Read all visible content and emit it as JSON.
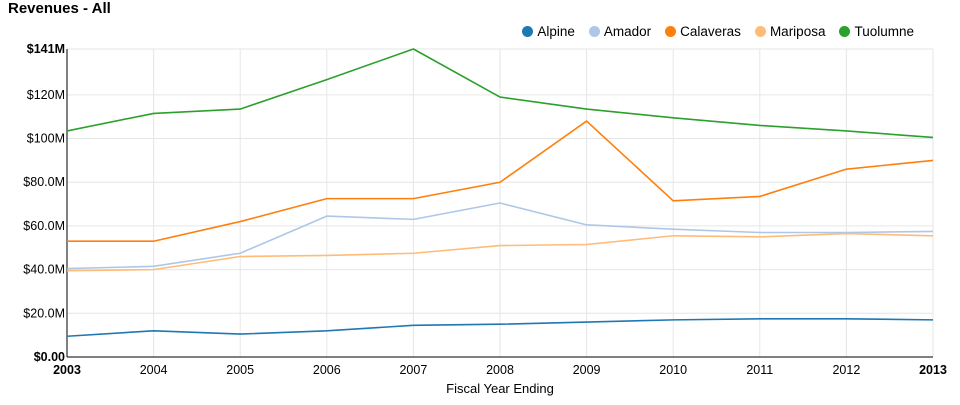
{
  "chart_data": {
    "type": "line",
    "title": "Revenues - All",
    "xlabel": "Fiscal Year Ending",
    "ylabel": "",
    "x": [
      2003,
      2004,
      2005,
      2006,
      2007,
      2008,
      2009,
      2010,
      2011,
      2012,
      2013
    ],
    "x_tick_labels": [
      "2003",
      "2004",
      "2005",
      "2006",
      "2007",
      "2008",
      "2009",
      "2010",
      "2011",
      "2012",
      "2013"
    ],
    "ylim": [
      0,
      141
    ],
    "y_ticks": [
      0,
      20,
      40,
      60,
      80,
      100,
      120,
      141
    ],
    "y_tick_labels": [
      "$0.00",
      "$20.0M",
      "$40.0M",
      "$60.0M",
      "$80.0M",
      "$100M",
      "$120M",
      "$141M"
    ],
    "grid": true,
    "legend_position": "top-right",
    "series": [
      {
        "name": "Alpine",
        "color": "#1f77b4",
        "values": [
          9.5,
          12.0,
          10.5,
          12.0,
          14.5,
          15.0,
          16.0,
          17.0,
          17.5,
          17.5,
          17.0
        ]
      },
      {
        "name": "Amador",
        "color": "#aec7e8",
        "values": [
          40.5,
          41.5,
          47.5,
          64.5,
          63.0,
          70.5,
          60.5,
          58.5,
          57.0,
          57.0,
          57.5
        ]
      },
      {
        "name": "Calaveras",
        "color": "#ff7f0e",
        "values": [
          53.0,
          53.0,
          62.0,
          72.5,
          72.5,
          80.0,
          108.0,
          71.5,
          73.5,
          86.0,
          90.0
        ]
      },
      {
        "name": "Mariposa",
        "color": "#ffbb78",
        "values": [
          39.5,
          40.0,
          46.0,
          46.5,
          47.5,
          51.0,
          51.5,
          55.5,
          55.0,
          56.5,
          55.5
        ]
      },
      {
        "name": "Tuolumne",
        "color": "#2ca02c",
        "values": [
          103.5,
          111.5,
          113.5,
          127.0,
          141.0,
          119.0,
          113.5,
          109.5,
          106.0,
          103.5,
          100.5
        ]
      }
    ]
  }
}
